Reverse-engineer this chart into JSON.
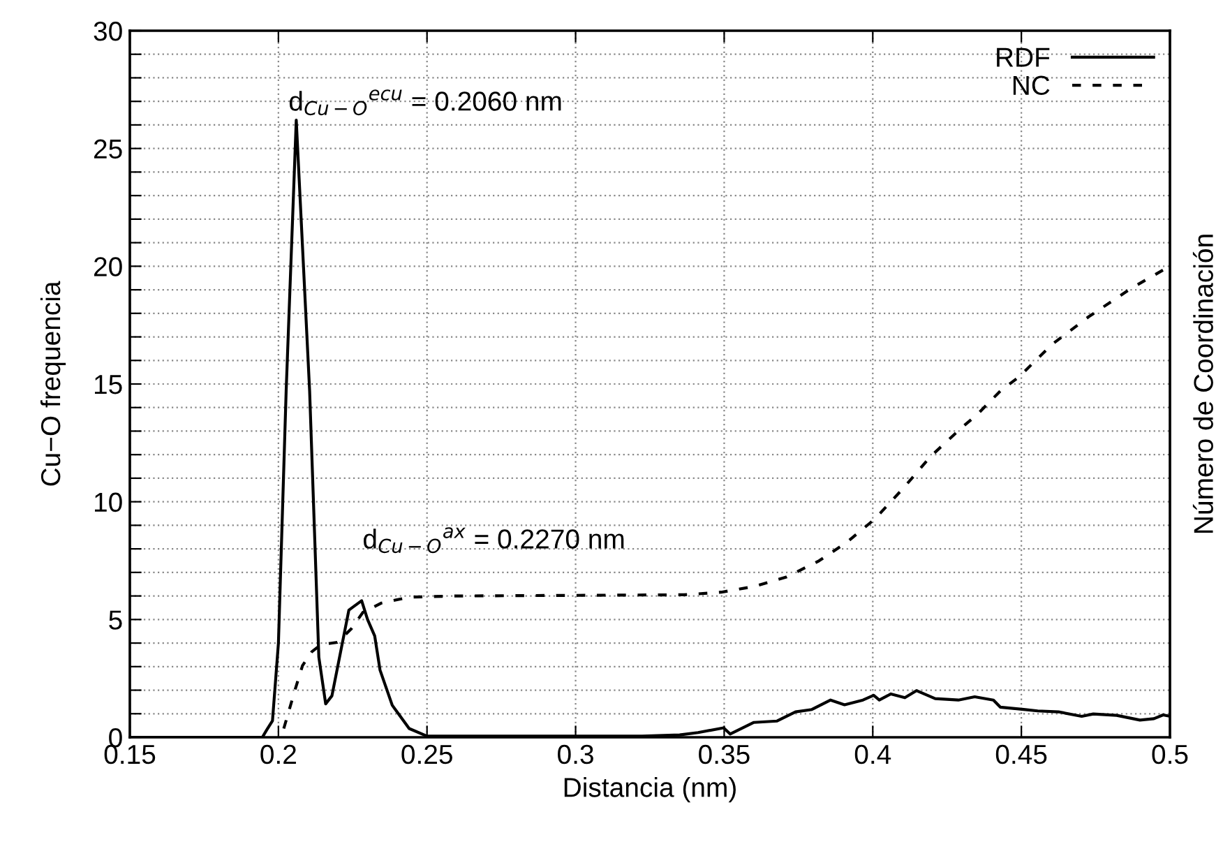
{
  "chart_data": {
    "type": "line",
    "xlabel": "Distancia (nm)",
    "ylabel": "Cu−O frequencia",
    "y2label": "Número de Coordinación",
    "series": [
      {
        "name": "RDF",
        "color": "#000000",
        "line_style": "solid",
        "x": [
          0.15,
          0.1946,
          0.196,
          0.198,
          0.2,
          0.2026,
          0.206,
          0.2105,
          0.2136,
          0.2159,
          0.218,
          0.2237,
          0.228,
          0.23,
          0.2324,
          0.2342,
          0.2383,
          0.244,
          0.25,
          0.3224,
          0.335,
          0.3412,
          0.3498,
          0.352,
          0.36,
          0.3678,
          0.374,
          0.3795,
          0.3858,
          0.3905,
          0.3967,
          0.4003,
          0.4022,
          0.4061,
          0.4108,
          0.4147,
          0.421,
          0.4288,
          0.4343,
          0.4406,
          0.4429,
          0.4508,
          0.4555,
          0.4625,
          0.4703,
          0.4742,
          0.4821,
          0.4899,
          0.4946,
          0.4977,
          0.5
        ],
        "values": [
          0,
          0,
          0.3,
          0.7,
          4,
          14.7,
          26.2,
          14.7,
          3.4,
          1.42,
          1.76,
          5.4,
          5.8,
          5.0,
          4.3,
          2.85,
          1.36,
          0.37,
          0.05,
          0.05,
          0.1,
          0.2,
          0.4,
          0.14,
          0.63,
          0.69,
          1.08,
          1.18,
          1.58,
          1.38,
          1.58,
          1.78,
          1.58,
          1.84,
          1.68,
          1.98,
          1.64,
          1.58,
          1.72,
          1.58,
          1.28,
          1.18,
          1.12,
          1.08,
          0.89,
          0.99,
          0.93,
          0.73,
          0.79,
          0.95,
          0.89
        ]
      },
      {
        "name": "NC",
        "color": "#000000",
        "line_style": "dashed",
        "x": [
          0.2018,
          0.2057,
          0.2081,
          0.2112,
          0.2143,
          0.2198,
          0.2245,
          0.2284,
          0.2347,
          0.244,
          0.26,
          0.3365,
          0.349,
          0.36,
          0.3709,
          0.3819,
          0.3913,
          0.4007,
          0.4101,
          0.4195,
          0.4304,
          0.4351,
          0.4429,
          0.4492,
          0.4602,
          0.4727,
          0.4868,
          0.4977,
          0.5
        ],
        "values": [
          0.37,
          2.06,
          3.04,
          3.63,
          3.93,
          4.03,
          4.6,
          5.3,
          5.7,
          5.95,
          6.0,
          6.05,
          6.16,
          6.4,
          6.8,
          7.49,
          8.28,
          9.27,
          10.55,
          11.93,
          13.2,
          13.7,
          14.7,
          15.3,
          16.67,
          17.86,
          19.05,
          19.84,
          20.0
        ]
      }
    ],
    "annotations": [
      {
        "text": "d$_{Cu−O}$$^{ecu}$ = 0.2060 nm",
        "x": 0.206,
        "y": 26.2
      },
      {
        "text": "d$_{Cu−O}$$^{ax}$ = 0.2270 nm",
        "x": 0.227,
        "y": 5.8
      }
    ],
    "xlim": [
      0.15,
      0.5
    ],
    "xticks": [
      0.15,
      0.2,
      0.25,
      0.3,
      0.35,
      0.4,
      0.45,
      0.5
    ],
    "ylim": [
      0,
      30
    ],
    "yticks": [
      0,
      {
        "value": 1,
        "label": null
      },
      {
        "value": 2,
        "label": null
      },
      {
        "value": 3,
        "label": null
      },
      {
        "value": 4,
        "label": null
      },
      5,
      {
        "value": 6,
        "label": null
      },
      {
        "value": 7,
        "label": null
      },
      {
        "value": 8,
        "label": null
      },
      {
        "value": 9,
        "label": null
      },
      10,
      {
        "value": 11,
        "label": null
      },
      {
        "value": 12,
        "label": null
      },
      {
        "value": 13,
        "label": null
      },
      {
        "value": 14,
        "label": null
      },
      15,
      {
        "value": 16,
        "label": null
      },
      {
        "value": 17,
        "label": null
      },
      {
        "value": 18,
        "label": null
      },
      {
        "value": 19,
        "label": null
      },
      20,
      {
        "value": 21,
        "label": null
      },
      {
        "value": 22,
        "label": null
      },
      {
        "value": 23,
        "label": null
      },
      {
        "value": 24,
        "label": null
      },
      25,
      {
        "value": 26,
        "label": null
      },
      {
        "value": 27,
        "label": null
      },
      {
        "value": 28,
        "label": null
      },
      {
        "value": 29,
        "label": null
      },
      30
    ],
    "grid": true,
    "legend": "top right"
  }
}
